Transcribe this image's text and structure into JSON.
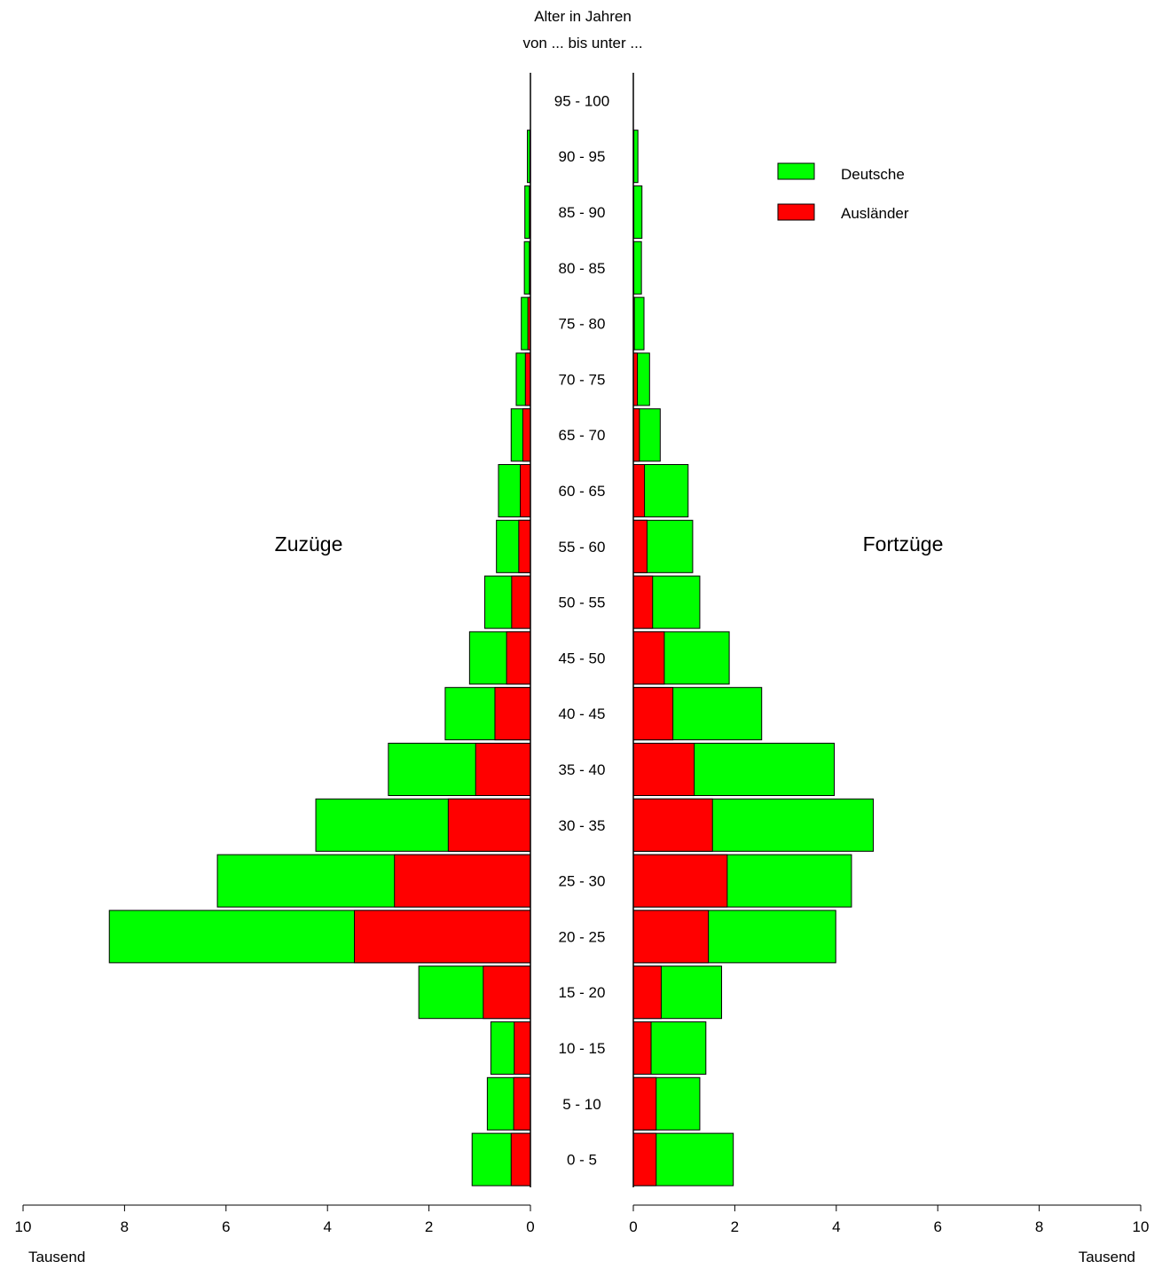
{
  "chart_data": {
    "type": "bar",
    "subtype": "population-pyramid-stacked",
    "header_lines": [
      "Alter in Jahren",
      "von ... bis unter ..."
    ],
    "categories": [
      "0 - 5",
      "5 - 10",
      "10 - 15",
      "15 - 20",
      "20 - 25",
      "25 - 30",
      "30 - 35",
      "35 - 40",
      "40 - 45",
      "45 - 50",
      "50 - 55",
      "55 - 60",
      "60 - 65",
      "65 - 70",
      "70 - 75",
      "75 - 80",
      "80 - 85",
      "85 - 90",
      "90 - 95",
      "95 - 100"
    ],
    "panels": [
      {
        "title": "Zuzüge",
        "direction": "left",
        "xlim": [
          0,
          10
        ],
        "ticks": [
          "0",
          "2",
          "4",
          "6",
          "8",
          "10"
        ],
        "unit_label": "Tausend",
        "series": [
          {
            "name": "Ausländer",
            "color": "#ff0000",
            "values": [
              0.38,
              0.33,
              0.32,
              0.93,
              3.47,
              2.68,
              1.62,
              1.08,
              0.7,
              0.47,
              0.37,
              0.23,
              0.2,
              0.15,
              0.1,
              0.05,
              0.02,
              0.02,
              0.01,
              0.0
            ]
          },
          {
            "name": "Deutsche",
            "color": "#00ff00",
            "values": [
              0.77,
              0.52,
              0.46,
              1.27,
              4.83,
              3.49,
              2.61,
              1.72,
              0.98,
              0.73,
              0.53,
              0.44,
              0.43,
              0.23,
              0.18,
              0.13,
              0.1,
              0.09,
              0.05,
              0.0
            ]
          }
        ]
      },
      {
        "title": "Fortzüge",
        "direction": "right",
        "xlim": [
          0,
          10
        ],
        "ticks": [
          "0",
          "2",
          "4",
          "6",
          "8",
          "10"
        ],
        "unit_label": "Tausend",
        "series": [
          {
            "name": "Ausländer",
            "color": "#ff0000",
            "values": [
              0.45,
              0.45,
              0.35,
              0.55,
              1.48,
              1.85,
              1.56,
              1.2,
              0.78,
              0.61,
              0.38,
              0.27,
              0.22,
              0.12,
              0.08,
              0.02,
              0.01,
              0.01,
              0.01,
              0.0
            ]
          },
          {
            "name": "Deutsche",
            "color": "#00ff00",
            "values": [
              1.52,
              0.86,
              1.08,
              1.19,
              2.51,
              2.45,
              3.17,
              2.76,
              1.75,
              1.28,
              0.93,
              0.9,
              0.86,
              0.41,
              0.24,
              0.19,
              0.15,
              0.16,
              0.08,
              0.0
            ]
          }
        ]
      }
    ],
    "legend": {
      "placement": "top-right",
      "items": [
        {
          "name": "Deutsche",
          "color": "#00ff00"
        },
        {
          "name": "Ausländer",
          "color": "#ff0000"
        }
      ]
    }
  }
}
